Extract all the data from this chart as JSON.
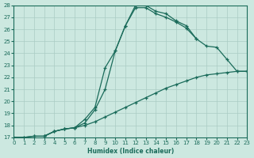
{
  "xlabel": "Humidex (Indice chaleur)",
  "xlim": [
    0,
    23
  ],
  "ylim": [
    17,
    28
  ],
  "xticks": [
    0,
    1,
    2,
    3,
    4,
    5,
    6,
    7,
    8,
    9,
    10,
    11,
    12,
    13,
    14,
    15,
    16,
    17,
    18,
    19,
    20,
    21,
    22,
    23
  ],
  "yticks": [
    17,
    18,
    19,
    20,
    21,
    22,
    23,
    24,
    25,
    26,
    27,
    28
  ],
  "bg_color": "#cce8e0",
  "grid_color": "#aaccc4",
  "line_color": "#1a6b5a",
  "line1_x": [
    0,
    1,
    2,
    3,
    4,
    5,
    6,
    7,
    8,
    9,
    10,
    11,
    12,
    13,
    14,
    15,
    16,
    17,
    18
  ],
  "line1_y": [
    17.0,
    17.0,
    17.1,
    17.1,
    17.5,
    17.7,
    17.8,
    18.2,
    19.3,
    21.0,
    24.2,
    26.3,
    28.0,
    28.0,
    27.5,
    27.3,
    26.7,
    26.3,
    25.2
  ],
  "line2_x": [
    3,
    4,
    5,
    6,
    7,
    8,
    9,
    10,
    11,
    12,
    13,
    14,
    15,
    16,
    17,
    18,
    19,
    20,
    21,
    22,
    23
  ],
  "line2_y": [
    17.1,
    17.5,
    17.7,
    17.8,
    18.5,
    19.5,
    22.8,
    24.2,
    26.3,
    27.8,
    27.8,
    27.3,
    27.0,
    26.6,
    26.1,
    25.2,
    24.6,
    24.5,
    23.5,
    22.5,
    22.5
  ],
  "line3_x": [
    0,
    1,
    2,
    3,
    4,
    5,
    6,
    7,
    8,
    9,
    10,
    11,
    12,
    13,
    14,
    15,
    16,
    17,
    18,
    19,
    20,
    21,
    22,
    23
  ],
  "line3_y": [
    17.0,
    17.0,
    17.1,
    17.1,
    17.5,
    17.7,
    17.8,
    18.0,
    18.3,
    18.7,
    19.1,
    19.5,
    19.9,
    20.3,
    20.7,
    21.1,
    21.4,
    21.7,
    22.0,
    22.2,
    22.3,
    22.4,
    22.5,
    22.5
  ]
}
